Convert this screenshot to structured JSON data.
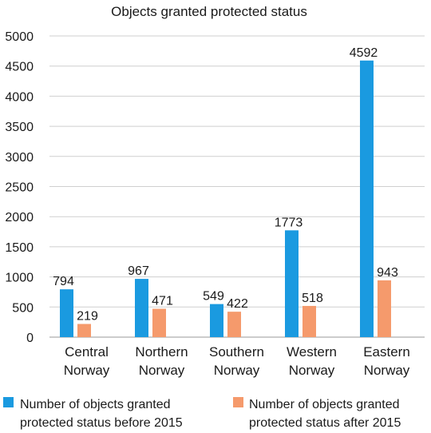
{
  "chart_data": {
    "type": "bar",
    "title": "Objects granted protected status",
    "xlabel": "",
    "ylabel": "",
    "ylim": [
      0,
      5000
    ],
    "yticks": [
      0,
      500,
      1000,
      1500,
      2000,
      2500,
      3000,
      3500,
      4000,
      4500,
      5000
    ],
    "grid": true,
    "legend_position": "bottom",
    "categories": [
      [
        "Central",
        "Norway"
      ],
      [
        "Northern",
        "Norway"
      ],
      [
        "Southern",
        "Norway"
      ],
      [
        "Western",
        "Norway"
      ],
      [
        "Eastern",
        "Norway"
      ]
    ],
    "series": [
      {
        "name_lines": [
          "Number of objects granted",
          "protected status before 2015"
        ],
        "color": "#1a9ae0",
        "values": [
          794,
          967,
          549,
          1773,
          4592
        ],
        "labels": [
          "794",
          "967",
          "549",
          "1773",
          "4592"
        ]
      },
      {
        "name_lines": [
          "Number of objects granted",
          "protected status after 2015"
        ],
        "color": "#f59a6c",
        "values": [
          219,
          471,
          422,
          518,
          943
        ],
        "labels": [
          "219",
          "471",
          "422",
          "518",
          "943"
        ]
      }
    ]
  }
}
